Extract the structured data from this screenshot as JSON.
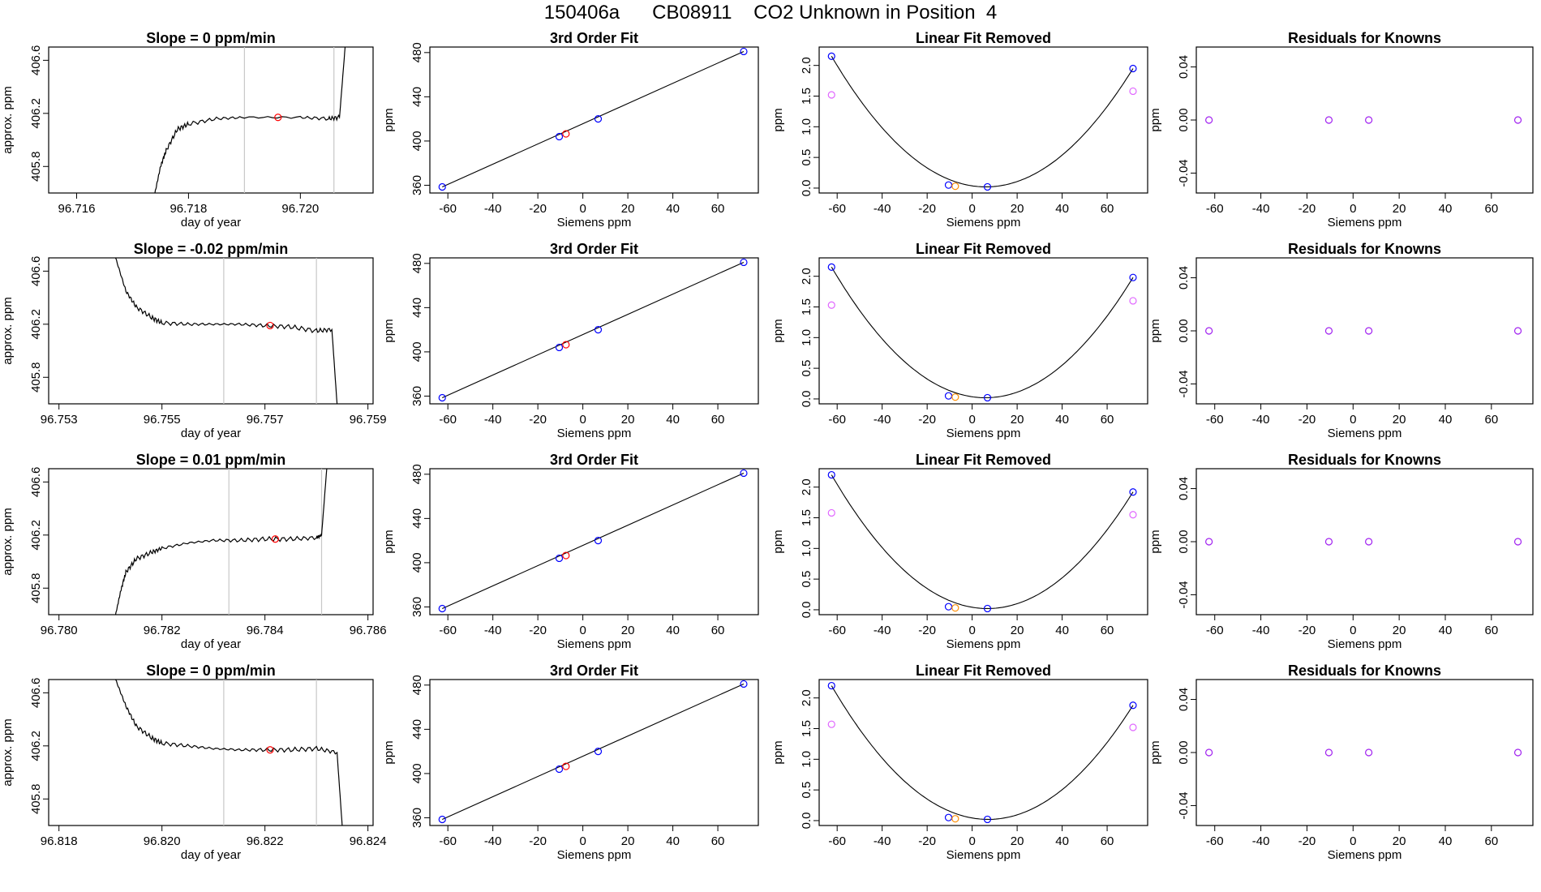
{
  "page": {
    "title": "150406a      CB08911    CO2 Unknown in Position  4"
  },
  "colors": {
    "axis": "#000000",
    "trace": "#000000",
    "marker_lines": "#c8c8c8",
    "known_points": "#0000ff",
    "unknown_point": "#ff0000",
    "unknown_point_linear_removed": "#ff8c00",
    "cubic_points": "#e066ff",
    "residual_points": "#a020f0"
  },
  "chart_data": [
    {
      "type": "line",
      "row": 0,
      "col": 0,
      "title": "Slope =  0  ppm/min",
      "xlabel": "day of year",
      "ylabel": "approx. ppm",
      "xlim": [
        96.7155,
        96.7213
      ],
      "ylim": [
        405.6,
        406.7
      ],
      "xticks": [
        "96.716",
        "96.718",
        "96.720"
      ],
      "xtick_values": [
        96.716,
        96.718,
        96.72
      ],
      "yticks": [
        "405.8",
        "406.2",
        "406.6"
      ],
      "ytick_values": [
        405.8,
        406.2,
        406.6
      ],
      "x": [
        96.7174,
        96.7175,
        96.7176,
        96.7178,
        96.718,
        96.7185,
        96.719,
        96.72,
        96.7205,
        96.7207,
        96.7208
      ],
      "y": [
        405.6,
        405.8,
        405.92,
        406.08,
        406.12,
        406.16,
        406.17,
        406.17,
        406.16,
        406.17,
        406.7
      ],
      "vlines": [
        96.719,
        96.7206
      ],
      "point": {
        "x": 96.7196,
        "y": 406.17
      }
    },
    {
      "type": "scatter",
      "row": 0,
      "col": 1,
      "title": "3rd Order Fit",
      "xlabel": "Siemens ppm",
      "ylabel": "ppm",
      "xlim": [
        -68,
        78
      ],
      "ylim": [
        353,
        485
      ],
      "xticks": [
        "-60",
        "-40",
        "-20",
        "0",
        "20",
        "40",
        "60"
      ],
      "xtick_values": [
        -60,
        -40,
        -20,
        0,
        20,
        40,
        60
      ],
      "yticks": [
        "360",
        "400",
        "440",
        "480"
      ],
      "ytick_values": [
        360,
        400,
        440,
        480
      ],
      "known": {
        "x": [
          -62.5,
          -10.5,
          6.8,
          71.5
        ],
        "y": [
          358.5,
          404,
          420,
          481
        ]
      },
      "unknown": {
        "x": -7.5,
        "y": 406.5
      }
    },
    {
      "type": "scatter",
      "row": 0,
      "col": 2,
      "title": "Linear Fit Removed",
      "xlabel": "Siemens ppm",
      "ylabel": "ppm",
      "xlim": [
        -68,
        78
      ],
      "ylim": [
        -0.08,
        2.3
      ],
      "xticks": [
        "-60",
        "-40",
        "-20",
        "0",
        "20",
        "40",
        "60"
      ],
      "xtick_values": [
        -60,
        -40,
        -20,
        0,
        20,
        40,
        60
      ],
      "yticks": [
        "0.0",
        "0.5",
        "1.0",
        "1.5",
        "2.0"
      ],
      "ytick_values": [
        0,
        0.5,
        1,
        1.5,
        2
      ],
      "known": {
        "x": [
          -62.5,
          -10.5,
          6.8,
          71.5
        ],
        "y": [
          2.15,
          0.05,
          0.02,
          1.95
        ]
      },
      "cubic": {
        "x": [
          -62.5,
          71.5
        ],
        "y": [
          1.52,
          1.58
        ]
      },
      "unknown": {
        "x": -7.5,
        "y": 0.03
      }
    },
    {
      "type": "scatter",
      "row": 0,
      "col": 3,
      "title": "Residuals for Knowns",
      "xlabel": "Siemens ppm",
      "ylabel": "ppm",
      "xlim": [
        -68,
        78
      ],
      "ylim": [
        -0.055,
        0.055
      ],
      "xticks": [
        "-60",
        "-40",
        "-20",
        "0",
        "20",
        "40",
        "60"
      ],
      "xtick_values": [
        -60,
        -40,
        -20,
        0,
        20,
        40,
        60
      ],
      "yticks": [
        "-0.04",
        "0.00",
        "0.04"
      ],
      "ytick_values": [
        -0.04,
        0,
        0.04
      ],
      "residuals": {
        "x": [
          -62.5,
          -10.5,
          6.8,
          71.5
        ],
        "y": [
          0,
          0,
          0,
          0
        ]
      }
    },
    {
      "type": "line",
      "row": 1,
      "col": 0,
      "title": "Slope =  -0.02  ppm/min",
      "xlabel": "day of year",
      "ylabel": "approx. ppm",
      "xlim": [
        96.7528,
        96.7591
      ],
      "ylim": [
        405.6,
        406.7
      ],
      "xticks": [
        "96.753",
        "96.755",
        "96.757",
        "96.759"
      ],
      "xtick_values": [
        96.753,
        96.755,
        96.757,
        96.759
      ],
      "yticks": [
        "405.8",
        "406.2",
        "406.6"
      ],
      "ytick_values": [
        405.8,
        406.2,
        406.6
      ],
      "x": [
        96.7541,
        96.7543,
        96.7545,
        96.7548,
        96.755,
        96.7555,
        96.756,
        96.7565,
        96.757,
        96.7575,
        96.758,
        96.7583,
        96.7584
      ],
      "y": [
        406.7,
        406.45,
        406.33,
        406.25,
        406.21,
        406.2,
        406.2,
        406.2,
        406.19,
        406.18,
        406.15,
        406.16,
        405.6
      ],
      "vlines": [
        96.7562,
        96.758
      ],
      "point": {
        "x": 96.7571,
        "y": 406.19
      }
    },
    {
      "type": "scatter",
      "row": 1,
      "col": 1,
      "title": "3rd Order Fit",
      "xlabel": "Siemens ppm",
      "ylabel": "ppm",
      "xlim": [
        -68,
        78
      ],
      "ylim": [
        353,
        485
      ],
      "xticks": [
        "-60",
        "-40",
        "-20",
        "0",
        "20",
        "40",
        "60"
      ],
      "xtick_values": [
        -60,
        -40,
        -20,
        0,
        20,
        40,
        60
      ],
      "yticks": [
        "360",
        "400",
        "440",
        "480"
      ],
      "ytick_values": [
        360,
        400,
        440,
        480
      ],
      "known": {
        "x": [
          -62.5,
          -10.5,
          6.8,
          71.5
        ],
        "y": [
          358.5,
          404,
          420,
          481
        ]
      },
      "unknown": {
        "x": -7.5,
        "y": 406.5
      }
    },
    {
      "type": "scatter",
      "row": 1,
      "col": 2,
      "title": "Linear Fit Removed",
      "xlabel": "Siemens ppm",
      "ylabel": "ppm",
      "xlim": [
        -68,
        78
      ],
      "ylim": [
        -0.08,
        2.3
      ],
      "xticks": [
        "-60",
        "-40",
        "-20",
        "0",
        "20",
        "40",
        "60"
      ],
      "xtick_values": [
        -60,
        -40,
        -20,
        0,
        20,
        40,
        60
      ],
      "yticks": [
        "0.0",
        "0.5",
        "1.0",
        "1.5",
        "2.0"
      ],
      "ytick_values": [
        0,
        0.5,
        1,
        1.5,
        2
      ],
      "known": {
        "x": [
          -62.5,
          -10.5,
          6.8,
          71.5
        ],
        "y": [
          2.15,
          0.05,
          0.02,
          1.98
        ]
      },
      "cubic": {
        "x": [
          -62.5,
          71.5
        ],
        "y": [
          1.53,
          1.6
        ]
      },
      "unknown": {
        "x": -7.5,
        "y": 0.03
      }
    },
    {
      "type": "scatter",
      "row": 1,
      "col": 3,
      "title": "Residuals for Knowns",
      "xlabel": "Siemens ppm",
      "ylabel": "ppm",
      "xlim": [
        -68,
        78
      ],
      "ylim": [
        -0.055,
        0.055
      ],
      "xticks": [
        "-60",
        "-40",
        "-20",
        "0",
        "20",
        "40",
        "60"
      ],
      "xtick_values": [
        -60,
        -40,
        -20,
        0,
        20,
        40,
        60
      ],
      "yticks": [
        "-0.04",
        "0.00",
        "0.04"
      ],
      "ytick_values": [
        -0.04,
        0,
        0.04
      ],
      "residuals": {
        "x": [
          -62.5,
          -10.5,
          6.8,
          71.5
        ],
        "y": [
          0,
          0,
          0,
          0
        ]
      }
    },
    {
      "type": "line",
      "row": 2,
      "col": 0,
      "title": "Slope =  0.01  ppm/min",
      "xlabel": "day of year",
      "ylabel": "approx. ppm",
      "xlim": [
        96.7798,
        96.7861
      ],
      "ylim": [
        405.6,
        406.7
      ],
      "xticks": [
        "96.780",
        "96.782",
        "96.784",
        "96.786"
      ],
      "xtick_values": [
        96.78,
        96.782,
        96.784,
        96.786
      ],
      "yticks": [
        "405.8",
        "406.2",
        "406.6"
      ],
      "ytick_values": [
        405.8,
        406.2,
        406.6
      ],
      "x": [
        96.7811,
        96.7812,
        96.7813,
        96.7815,
        96.7818,
        96.782,
        96.7825,
        96.783,
        96.7835,
        96.784,
        96.7845,
        96.785,
        96.7851,
        96.7852
      ],
      "y": [
        405.6,
        405.78,
        405.92,
        406.02,
        406.07,
        406.1,
        406.14,
        406.16,
        406.16,
        406.17,
        406.17,
        406.18,
        406.2,
        406.7
      ],
      "vlines": [
        96.7833,
        96.7851
      ],
      "point": {
        "x": 96.7842,
        "y": 406.17
      }
    },
    {
      "type": "scatter",
      "row": 2,
      "col": 1,
      "title": "3rd Order Fit",
      "xlabel": "Siemens ppm",
      "ylabel": "ppm",
      "xlim": [
        -68,
        78
      ],
      "ylim": [
        353,
        485
      ],
      "xticks": [
        "-60",
        "-40",
        "-20",
        "0",
        "20",
        "40",
        "60"
      ],
      "xtick_values": [
        -60,
        -40,
        -20,
        0,
        20,
        40,
        60
      ],
      "yticks": [
        "360",
        "400",
        "440",
        "480"
      ],
      "ytick_values": [
        360,
        400,
        440,
        480
      ],
      "known": {
        "x": [
          -62.5,
          -10.5,
          6.8,
          71.5
        ],
        "y": [
          358.5,
          404,
          420,
          481
        ]
      },
      "unknown": {
        "x": -7.5,
        "y": 406.5
      }
    },
    {
      "type": "scatter",
      "row": 2,
      "col": 2,
      "title": "Linear Fit Removed",
      "xlabel": "Siemens ppm",
      "ylabel": "ppm",
      "xlim": [
        -68,
        78
      ],
      "ylim": [
        -0.08,
        2.3
      ],
      "xticks": [
        "-60",
        "-40",
        "-20",
        "0",
        "20",
        "40",
        "60"
      ],
      "xtick_values": [
        -60,
        -40,
        -20,
        0,
        20,
        40,
        60
      ],
      "yticks": [
        "0.0",
        "0.5",
        "1.0",
        "1.5",
        "2.0"
      ],
      "ytick_values": [
        0,
        0.5,
        1,
        1.5,
        2
      ],
      "known": {
        "x": [
          -62.5,
          -10.5,
          6.8,
          71.5
        ],
        "y": [
          2.2,
          0.05,
          0.02,
          1.92
        ]
      },
      "cubic": {
        "x": [
          -62.5,
          71.5
        ],
        "y": [
          1.58,
          1.55
        ]
      },
      "unknown": {
        "x": -7.5,
        "y": 0.03
      }
    },
    {
      "type": "scatter",
      "row": 2,
      "col": 3,
      "title": "Residuals for Knowns",
      "xlabel": "Siemens ppm",
      "ylabel": "ppm",
      "xlim": [
        -68,
        78
      ],
      "ylim": [
        -0.055,
        0.055
      ],
      "xticks": [
        "-60",
        "-40",
        "-20",
        "0",
        "20",
        "40",
        "60"
      ],
      "xtick_values": [
        -60,
        -40,
        -20,
        0,
        20,
        40,
        60
      ],
      "yticks": [
        "-0.04",
        "0.00",
        "0.04"
      ],
      "ytick_values": [
        -0.04,
        0,
        0.04
      ],
      "residuals": {
        "x": [
          -62.5,
          -10.5,
          6.8,
          71.5
        ],
        "y": [
          0,
          0,
          0,
          0
        ]
      }
    },
    {
      "type": "line",
      "row": 3,
      "col": 0,
      "title": "Slope =  0  ppm/min",
      "xlabel": "day of year",
      "ylabel": "approx. ppm",
      "xlim": [
        96.8178,
        96.8241
      ],
      "ylim": [
        405.6,
        406.7
      ],
      "xticks": [
        "96.818",
        "96.820",
        "96.822",
        "96.824"
      ],
      "xtick_values": [
        96.818,
        96.82,
        96.822,
        96.824
      ],
      "yticks": [
        "405.8",
        "406.2",
        "406.6"
      ],
      "ytick_values": [
        405.8,
        406.2,
        406.6
      ],
      "x": [
        96.8191,
        96.8193,
        96.8195,
        96.8198,
        96.82,
        96.8205,
        96.821,
        96.8215,
        96.822,
        96.8225,
        96.823,
        96.8234,
        96.8235
      ],
      "y": [
        406.7,
        406.5,
        406.35,
        406.26,
        406.22,
        406.2,
        406.18,
        406.17,
        406.17,
        406.17,
        406.18,
        406.15,
        405.6
      ],
      "vlines": [
        96.8212,
        96.823
      ],
      "point": {
        "x": 96.8221,
        "y": 406.17
      }
    },
    {
      "type": "scatter",
      "row": 3,
      "col": 1,
      "title": "3rd Order Fit",
      "xlabel": "Siemens ppm",
      "ylabel": "ppm",
      "xlim": [
        -68,
        78
      ],
      "ylim": [
        353,
        485
      ],
      "xticks": [
        "-60",
        "-40",
        "-20",
        "0",
        "20",
        "40",
        "60"
      ],
      "xtick_values": [
        -60,
        -40,
        -20,
        0,
        20,
        40,
        60
      ],
      "yticks": [
        "360",
        "400",
        "440",
        "480"
      ],
      "ytick_values": [
        360,
        400,
        440,
        480
      ],
      "known": {
        "x": [
          -62.5,
          -10.5,
          6.8,
          71.5
        ],
        "y": [
          358.5,
          404,
          420,
          481
        ]
      },
      "unknown": {
        "x": -7.5,
        "y": 406.5
      }
    },
    {
      "type": "scatter",
      "row": 3,
      "col": 2,
      "title": "Linear Fit Removed",
      "xlabel": "Siemens ppm",
      "ylabel": "ppm",
      "xlim": [
        -68,
        78
      ],
      "ylim": [
        -0.08,
        2.3
      ],
      "xticks": [
        "-60",
        "-40",
        "-20",
        "0",
        "20",
        "40",
        "60"
      ],
      "xtick_values": [
        -60,
        -40,
        -20,
        0,
        20,
        40,
        60
      ],
      "yticks": [
        "0.0",
        "0.5",
        "1.0",
        "1.5",
        "2.0"
      ],
      "ytick_values": [
        0,
        0.5,
        1,
        1.5,
        2
      ],
      "known": {
        "x": [
          -62.5,
          -10.5,
          6.8,
          71.5
        ],
        "y": [
          2.2,
          0.05,
          0.02,
          1.88
        ]
      },
      "cubic": {
        "x": [
          -62.5,
          71.5
        ],
        "y": [
          1.57,
          1.52
        ]
      },
      "unknown": {
        "x": -7.5,
        "y": 0.03
      }
    },
    {
      "type": "scatter",
      "row": 3,
      "col": 3,
      "title": "Residuals for Knowns",
      "xlabel": "Siemens ppm",
      "ylabel": "ppm",
      "xlim": [
        -68,
        78
      ],
      "ylim": [
        -0.055,
        0.055
      ],
      "xticks": [
        "-60",
        "-40",
        "-20",
        "0",
        "20",
        "40",
        "60"
      ],
      "xtick_values": [
        -60,
        -40,
        -20,
        0,
        20,
        40,
        60
      ],
      "yticks": [
        "-0.04",
        "0.00",
        "0.04"
      ],
      "ytick_values": [
        -0.04,
        0,
        0.04
      ],
      "residuals": {
        "x": [
          -62.5,
          -10.5,
          6.8,
          71.5
        ],
        "y": [
          0,
          0,
          0,
          0
        ]
      }
    }
  ]
}
